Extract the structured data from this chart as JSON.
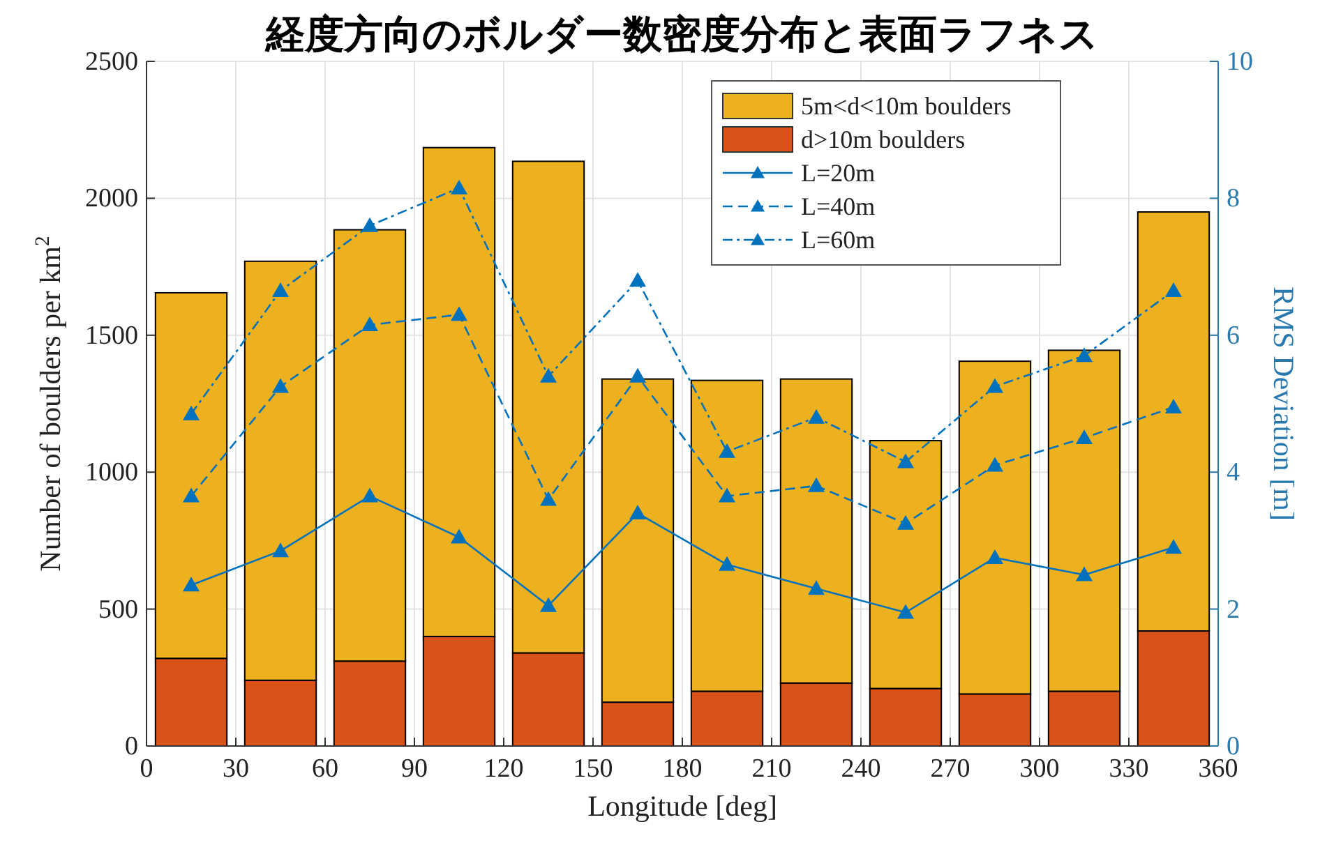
{
  "chart_data": {
    "type": "bar",
    "title": "経度方向のボルダー数密度分布と表面ラフネス",
    "xlabel": "Longitude [deg]",
    "ylabel": "Number of boulders per km$^{2}$",
    "y2label": "RMS Deviation [m]",
    "x": [
      15,
      45,
      75,
      105,
      135,
      165,
      195,
      225,
      255,
      285,
      315,
      345
    ],
    "stacked": true,
    "series": [
      {
        "name": "d>10m boulders",
        "color": "#d95319",
        "values": [
          320,
          240,
          310,
          400,
          340,
          160,
          200,
          230,
          210,
          190,
          200,
          420
        ]
      },
      {
        "name": "5m<d<10m boulders",
        "color": "#edb120",
        "values": [
          1335,
          1530,
          1575,
          1785,
          1795,
          1180,
          1135,
          1110,
          905,
          1215,
          1245,
          1530
        ]
      },
      {
        "name": "L=20m",
        "type": "line",
        "axis": "y2",
        "color": "#0072bd",
        "line_style": "solid",
        "values": [
          2.35,
          2.85,
          3.65,
          3.05,
          2.05,
          3.4,
          2.65,
          2.3,
          1.95,
          2.75,
          2.5,
          2.9
        ]
      },
      {
        "name": "L=40m",
        "type": "line",
        "axis": "y2",
        "color": "#0072bd",
        "line_style": "dashed",
        "values": [
          3.65,
          5.25,
          6.15,
          6.3,
          3.6,
          5.4,
          3.65,
          3.8,
          3.25,
          4.1,
          4.5,
          4.95
        ]
      },
      {
        "name": "L=60m",
        "type": "line",
        "axis": "y2",
        "color": "#0072bd",
        "line_style": "dashdot",
        "values": [
          4.85,
          6.65,
          7.6,
          8.15,
          5.4,
          6.8,
          4.3,
          4.8,
          4.15,
          5.25,
          5.7,
          6.65
        ]
      }
    ],
    "marker": "triangle",
    "xlim": [
      0,
      360
    ],
    "xticks": [
      0,
      30,
      60,
      90,
      120,
      150,
      180,
      210,
      240,
      270,
      300,
      330,
      360
    ],
    "ylim": [
      0,
      2500
    ],
    "yticks": [
      0,
      500,
      1000,
      1500,
      2000,
      2500
    ],
    "y2lim": [
      0,
      10
    ],
    "y2ticks": [
      0,
      2,
      4,
      6,
      8,
      10
    ],
    "grid": true,
    "legend": "top right"
  }
}
